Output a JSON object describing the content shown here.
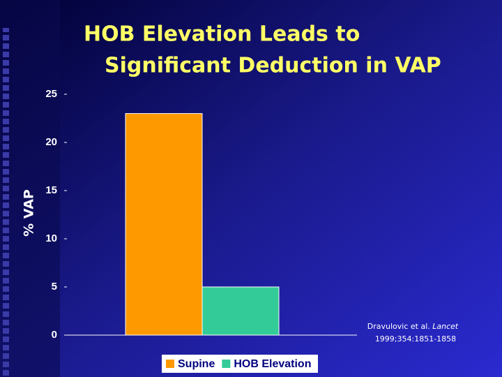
{
  "chart_data": {
    "type": "bar",
    "title": [
      "HOB Elevation Leads to",
      "Significant Deduction in VAP"
    ],
    "ylabel": "% VAP",
    "categories": [
      null
    ],
    "series": [
      {
        "name": "Supine",
        "color": "#ff9900",
        "values": [
          23
        ]
      },
      {
        "name": "HOB Elevation",
        "color": "#33cc99",
        "values": [
          5
        ]
      }
    ],
    "ylim": [
      0,
      25
    ],
    "yticks": [
      0,
      5,
      10,
      15,
      20,
      25
    ],
    "grid": false,
    "legend": "bottom",
    "annotation": {
      "author": "Dravulovic et al.",
      "journal": "Lancet",
      "reference": "1999;354:1851-1858"
    }
  }
}
